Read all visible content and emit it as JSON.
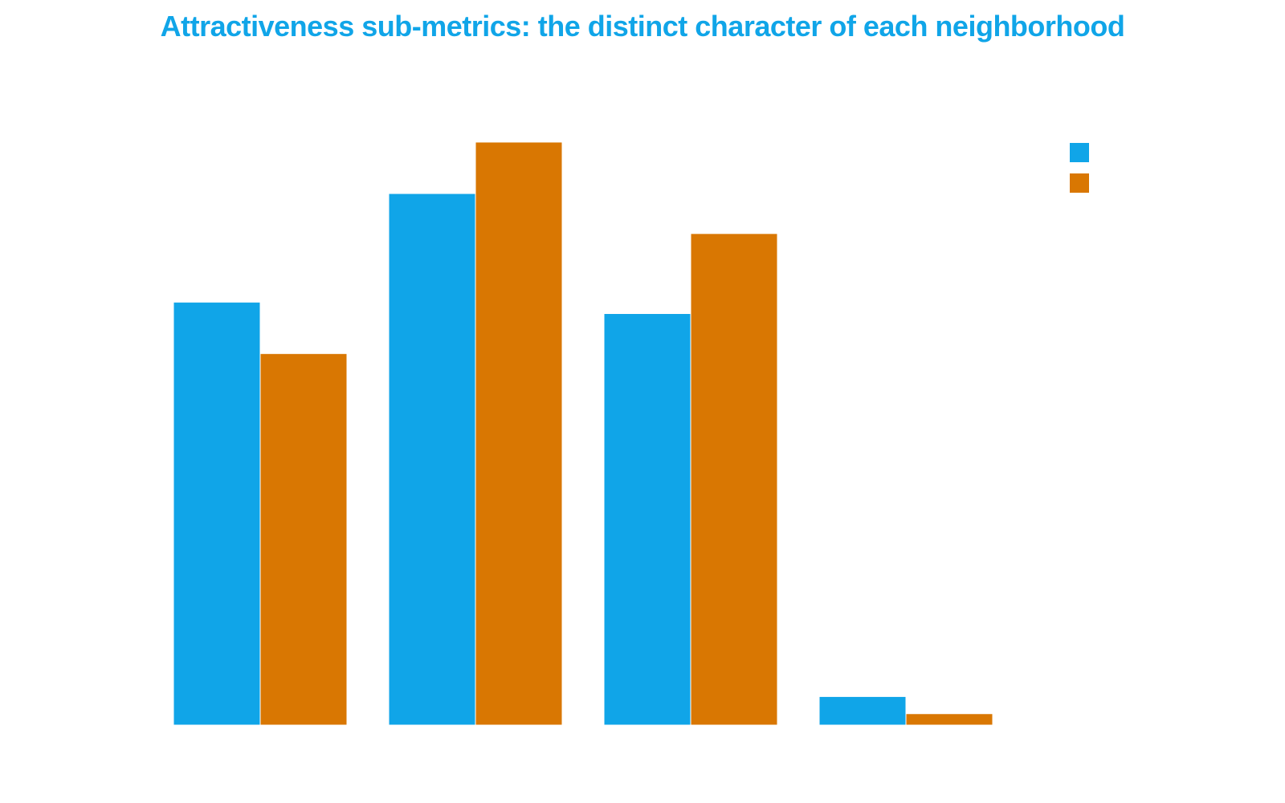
{
  "chart_data": {
    "type": "bar",
    "title": "Attractiveness sub-metrics: the distinct character of each neighborhood",
    "categories": [
      "",
      "",
      "",
      ""
    ],
    "series": [
      {
        "values": [
          0.74,
          0.93,
          0.72,
          0.05
        ],
        "color": "#10a5e8"
      },
      {
        "values": [
          0.65,
          1.02,
          0.86,
          0.02
        ],
        "color": "#d97702"
      }
    ],
    "xlabel": "",
    "ylabel": "",
    "ylim": [
      0,
      1.1
    ],
    "grid": false,
    "legend": "top-right"
  },
  "colors": {
    "title": "#10a5e8",
    "series_1": "#10a5e8",
    "series_2": "#d97702"
  }
}
